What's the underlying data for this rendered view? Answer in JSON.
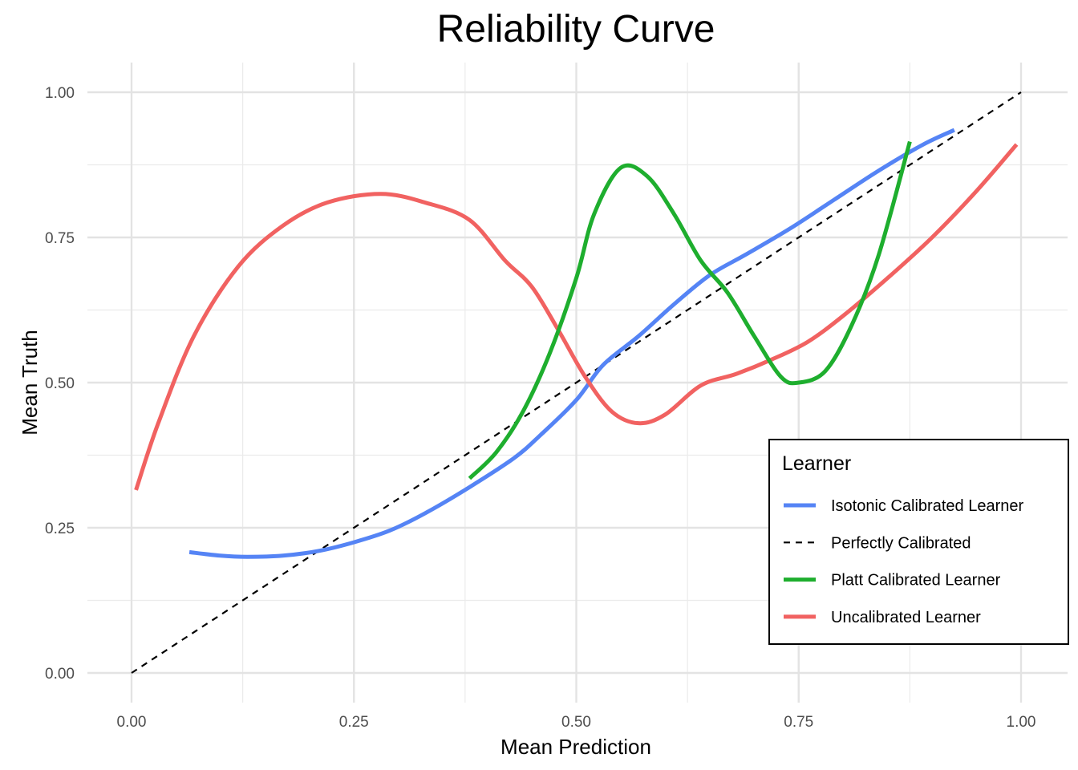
{
  "chart_data": {
    "type": "line",
    "title": "Reliability Curve",
    "xlabel": "Mean Prediction",
    "ylabel": "Mean Truth",
    "xlim": [
      0,
      1
    ],
    "ylim": [
      0,
      1
    ],
    "x_ticks": [
      "0.00",
      "0.25",
      "0.50",
      "0.75",
      "1.00"
    ],
    "y_ticks": [
      "0.00",
      "0.25",
      "0.50",
      "0.75",
      "1.00"
    ],
    "grid": true,
    "legend": {
      "title": "Learner",
      "position": "bottom-right",
      "entries": [
        {
          "name": "Isotonic Calibrated Learner",
          "color": "#5584f5",
          "style": "solid"
        },
        {
          "name": "Perfectly Calibrated",
          "color": "#000000",
          "style": "dashed"
        },
        {
          "name": "Platt Calibrated Learner",
          "color": "#1eae2e",
          "style": "solid"
        },
        {
          "name": "Uncalibrated Learner",
          "color": "#f16261",
          "style": "solid"
        }
      ]
    },
    "series": [
      {
        "name": "Isotonic Calibrated Learner",
        "color": "#5584f5",
        "style": "solid",
        "points": [
          [
            0.065,
            0.208
          ],
          [
            0.1,
            0.202
          ],
          [
            0.13,
            0.2
          ],
          [
            0.17,
            0.202
          ],
          [
            0.21,
            0.21
          ],
          [
            0.25,
            0.225
          ],
          [
            0.29,
            0.245
          ],
          [
            0.33,
            0.275
          ],
          [
            0.38,
            0.32
          ],
          [
            0.43,
            0.37
          ],
          [
            0.46,
            0.41
          ],
          [
            0.5,
            0.47
          ],
          [
            0.53,
            0.53
          ],
          [
            0.57,
            0.58
          ],
          [
            0.61,
            0.635
          ],
          [
            0.65,
            0.685
          ],
          [
            0.69,
            0.72
          ],
          [
            0.74,
            0.765
          ],
          [
            0.79,
            0.815
          ],
          [
            0.84,
            0.865
          ],
          [
            0.89,
            0.91
          ],
          [
            0.925,
            0.935
          ]
        ]
      },
      {
        "name": "Perfectly Calibrated",
        "color": "#000000",
        "style": "dashed",
        "points": [
          [
            0,
            0
          ],
          [
            1,
            1
          ]
        ]
      },
      {
        "name": "Platt Calibrated Learner",
        "color": "#1eae2e",
        "style": "solid",
        "points": [
          [
            0.38,
            0.335
          ],
          [
            0.41,
            0.38
          ],
          [
            0.44,
            0.45
          ],
          [
            0.47,
            0.55
          ],
          [
            0.5,
            0.68
          ],
          [
            0.52,
            0.79
          ],
          [
            0.55,
            0.87
          ],
          [
            0.58,
            0.855
          ],
          [
            0.61,
            0.79
          ],
          [
            0.64,
            0.71
          ],
          [
            0.67,
            0.655
          ],
          [
            0.7,
            0.58
          ],
          [
            0.73,
            0.51
          ],
          [
            0.75,
            0.5
          ],
          [
            0.78,
            0.52
          ],
          [
            0.81,
            0.6
          ],
          [
            0.84,
            0.72
          ],
          [
            0.875,
            0.915
          ]
        ]
      },
      {
        "name": "Uncalibrated Learner",
        "color": "#f16261",
        "style": "solid",
        "points": [
          [
            0.005,
            0.315
          ],
          [
            0.03,
            0.43
          ],
          [
            0.07,
            0.58
          ],
          [
            0.12,
            0.7
          ],
          [
            0.17,
            0.77
          ],
          [
            0.22,
            0.81
          ],
          [
            0.28,
            0.825
          ],
          [
            0.33,
            0.81
          ],
          [
            0.38,
            0.78
          ],
          [
            0.42,
            0.71
          ],
          [
            0.45,
            0.665
          ],
          [
            0.48,
            0.59
          ],
          [
            0.51,
            0.51
          ],
          [
            0.54,
            0.45
          ],
          [
            0.57,
            0.43
          ],
          [
            0.6,
            0.445
          ],
          [
            0.64,
            0.495
          ],
          [
            0.68,
            0.515
          ],
          [
            0.72,
            0.54
          ],
          [
            0.76,
            0.57
          ],
          [
            0.8,
            0.615
          ],
          [
            0.85,
            0.68
          ],
          [
            0.9,
            0.75
          ],
          [
            0.95,
            0.83
          ],
          [
            0.995,
            0.91
          ]
        ]
      }
    ]
  }
}
